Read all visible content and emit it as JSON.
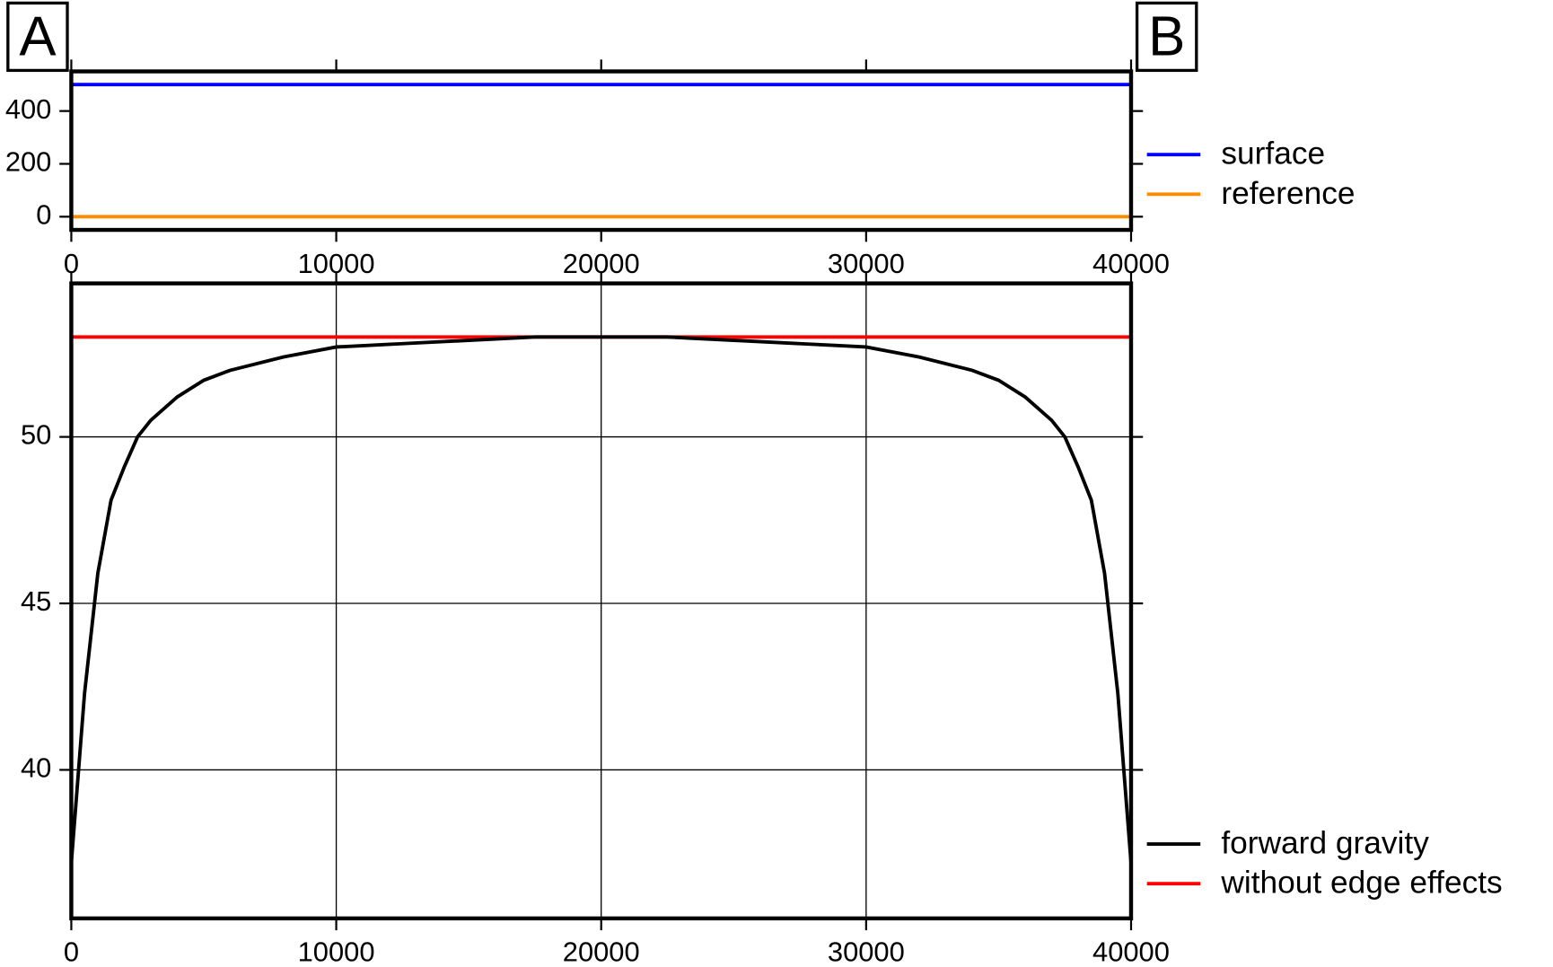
{
  "chart_data": [
    {
      "type": "line",
      "profile_labels": [
        "A",
        "B"
      ],
      "x": [
        0,
        40000
      ],
      "series": [
        {
          "name": "surface",
          "color": "#0000ff",
          "values": [
            500,
            500
          ]
        },
        {
          "name": "reference",
          "color": "#ff8c00",
          "values": [
            0,
            0
          ]
        }
      ],
      "xlim": [
        0,
        40000
      ],
      "xticks": [
        0,
        10000,
        20000,
        30000,
        40000
      ],
      "ylim": [
        -50,
        550
      ],
      "yticks": [
        0,
        200,
        400
      ],
      "grid": false,
      "legend": "outside right top"
    },
    {
      "type": "line",
      "x": [
        0,
        500,
        1000,
        1500,
        2000,
        2500,
        3000,
        4000,
        5000,
        6000,
        8000,
        10000,
        12500,
        15000,
        17500,
        20000,
        22500,
        25000,
        27500,
        30000,
        32000,
        34000,
        35000,
        36000,
        37000,
        37500,
        38000,
        38500,
        39000,
        39500,
        40000
      ],
      "series": [
        {
          "name": "forward gravity",
          "color": "#000000",
          "values": [
            37.2,
            42.3,
            45.9,
            48.1,
            49.1,
            50.0,
            50.5,
            51.2,
            51.7,
            52.0,
            52.4,
            52.7,
            52.8,
            52.9,
            53.0,
            53.0,
            53.0,
            52.9,
            52.8,
            52.7,
            52.4,
            52.0,
            51.7,
            51.2,
            50.5,
            50.0,
            49.1,
            48.1,
            45.9,
            42.3,
            37.2
          ]
        },
        {
          "name": "without edge effects",
          "color": "#ff0000",
          "values": [
            53.0,
            53.0,
            53.0,
            53.0,
            53.0,
            53.0,
            53.0,
            53.0,
            53.0,
            53.0,
            53.0,
            53.0,
            53.0,
            53.0,
            53.0,
            53.0,
            53.0,
            53.0,
            53.0,
            53.0,
            53.0,
            53.0,
            53.0,
            53.0,
            53.0,
            53.0,
            53.0,
            53.0,
            53.0,
            53.0,
            53.0
          ]
        }
      ],
      "xlim": [
        0,
        40000
      ],
      "xticks": [
        0,
        10000,
        20000,
        30000,
        40000
      ],
      "ylim": [
        35.54,
        54.61
      ],
      "yticks": [
        40,
        45,
        50
      ],
      "grid": true,
      "legend": "outside right bottom"
    }
  ]
}
